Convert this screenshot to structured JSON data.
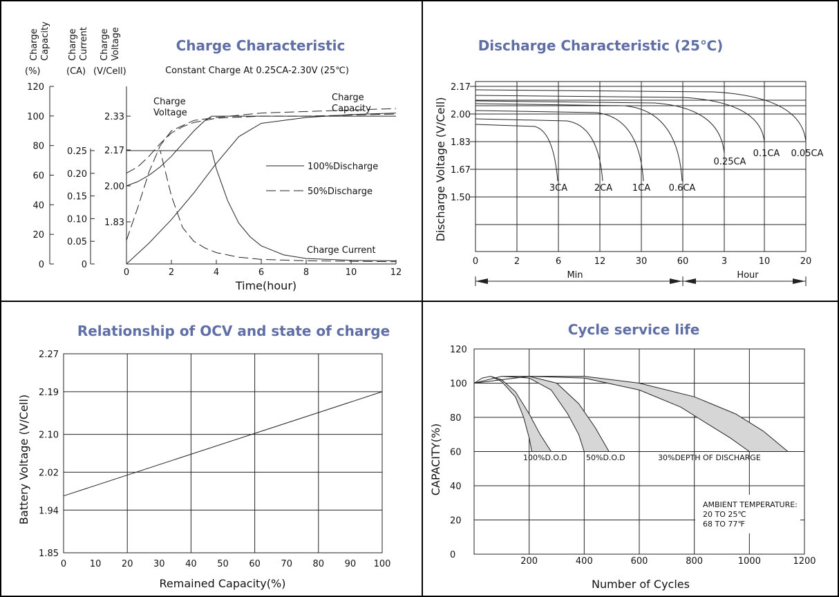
{
  "charts": [
    {
      "type": "line",
      "title": "Charge Characteristic",
      "subtitle": "Constant Charge At 0.25CA-2.30V  (25℃)",
      "xlabel": "Time(hour)",
      "y_axes": [
        {
          "label_lines": [
            "Charge",
            "Capacity"
          ],
          "unit": "(%)",
          "ticks": [
            "120",
            "100",
            "80",
            "60",
            "40",
            "20",
            "0"
          ]
        },
        {
          "label_lines": [
            "Charge",
            "Current"
          ],
          "unit": "(CA)",
          "ticks": [
            "0.25",
            "0.20",
            "0.15",
            "0.10",
            "0.05",
            "0"
          ]
        },
        {
          "label_lines": [
            "Charge",
            "Voltage"
          ],
          "unit": "(V/Cell)",
          "ticks": [
            "2.33",
            "2.17",
            "2.00",
            "1.83"
          ]
        }
      ],
      "x_ticks": [
        "0",
        "2",
        "4",
        "6",
        "8",
        "10",
        "12"
      ],
      "xlim": [
        0,
        12
      ],
      "legend": [
        {
          "label": "100%Discharge",
          "style": "solid"
        },
        {
          "label": "50%Discharge",
          "style": "dashed"
        }
      ],
      "annotations": [
        {
          "text_lines": [
            "Charge",
            "Voltage"
          ]
        },
        {
          "text_lines": [
            "Charge",
            "Capacity"
          ]
        },
        {
          "text_lines": [
            "Charge Current"
          ]
        }
      ],
      "series": [
        {
          "name": "100%Discharge",
          "quantity": "voltage",
          "style": "solid",
          "x": [
            0,
            0.5,
            1,
            1.5,
            2,
            2.5,
            3,
            3.5,
            3.8,
            12
          ],
          "y": [
            2.0,
            2.02,
            2.05,
            2.09,
            2.14,
            2.2,
            2.26,
            2.31,
            2.33,
            2.33
          ]
        },
        {
          "name": "50%Discharge",
          "quantity": "voltage",
          "style": "dashed",
          "x": [
            0,
            0.5,
            1,
            1.5,
            2,
            2.5,
            3,
            3.5,
            4,
            6,
            8,
            12
          ],
          "y": [
            2.06,
            2.09,
            2.14,
            2.2,
            2.25,
            2.28,
            2.3,
            2.31,
            2.32,
            2.33,
            2.33,
            2.34
          ]
        },
        {
          "name": "100%Discharge",
          "quantity": "current",
          "style": "solid",
          "x": [
            0,
            3.8,
            4,
            4.5,
            5,
            5.5,
            6,
            7,
            8,
            10,
            12
          ],
          "y": [
            0.25,
            0.25,
            0.21,
            0.14,
            0.09,
            0.06,
            0.04,
            0.02,
            0.012,
            0.008,
            0.007
          ]
        },
        {
          "name": "50%Discharge",
          "quantity": "current",
          "style": "dashed",
          "x": [
            0,
            1.5,
            2,
            2.5,
            3,
            3.5,
            4,
            5,
            6,
            8,
            10,
            12
          ],
          "y": [
            0.25,
            0.25,
            0.15,
            0.08,
            0.05,
            0.035,
            0.025,
            0.015,
            0.01,
            0.007,
            0.006,
            0.005
          ]
        },
        {
          "name": "100%Discharge",
          "quantity": "capacity",
          "style": "solid",
          "x": [
            0,
            1,
            2,
            3,
            4,
            5,
            6,
            8,
            10,
            12
          ],
          "y": [
            0,
            14,
            30,
            48,
            68,
            86,
            95,
            99,
            101,
            102
          ]
        },
        {
          "name": "50%Discharge",
          "quantity": "capacity",
          "style": "dashed",
          "x": [
            0,
            0.5,
            1,
            1.5,
            2,
            3,
            4,
            6,
            8,
            10,
            12
          ],
          "y": [
            16,
            38,
            62,
            80,
            90,
            97,
            99,
            102,
            103,
            104,
            105
          ]
        }
      ]
    },
    {
      "type": "line",
      "title": "Discharge Characteristic  (25℃)",
      "ylabel": "Discharge Voltage (V/Cell)",
      "y_ticks": [
        "2.17",
        "2.00",
        "1.83",
        "1.67",
        "1.50"
      ],
      "x_ticks": [
        "0",
        "2",
        "6",
        "12",
        "30",
        "60",
        "3",
        "10",
        "20"
      ],
      "x_groups": [
        {
          "label": "Min"
        },
        {
          "label": "Hour"
        }
      ],
      "series": [
        {
          "name": "3CA"
        },
        {
          "name": "2CA"
        },
        {
          "name": "1CA"
        },
        {
          "name": "0.6CA"
        },
        {
          "name": "0.25CA"
        },
        {
          "name": "0.1CA"
        },
        {
          "name": "0.05CA"
        }
      ]
    },
    {
      "type": "line",
      "title": "Relationship of OCV and state of charge",
      "xlabel": "Remained Capacity(%)",
      "ylabel": "Battery Voltage (V/Cell)",
      "x_ticks": [
        "0",
        "10",
        "20",
        "30",
        "40",
        "50",
        "60",
        "70",
        "80",
        "90",
        "100"
      ],
      "y_ticks": [
        "2.27",
        "2.19",
        "2.10",
        "2.02",
        "1.94",
        "1.85"
      ],
      "xlim": [
        0,
        100
      ],
      "ylim": [
        1.85,
        2.27
      ],
      "series": [
        {
          "x": [
            0,
            100
          ],
          "y": [
            1.97,
            2.19
          ]
        }
      ]
    },
    {
      "type": "area",
      "title": "Cycle service life",
      "xlabel": "Number of Cycles",
      "ylabel": "CAPACITY(%)",
      "x_ticks": [
        "200",
        "400",
        "600",
        "800",
        "1000",
        "1200"
      ],
      "y_ticks": [
        "120",
        "100",
        "80",
        "60",
        "40",
        "20",
        "0"
      ],
      "xlim": [
        0,
        1200
      ],
      "ylim": [
        0,
        120
      ],
      "bands": [
        {
          "name": "100%D.O.D",
          "upper": {
            "x": [
              0,
              30,
              60,
              100,
              150,
              200,
              240,
              280
            ],
            "y": [
              100,
              103,
              104,
              102,
              95,
              82,
              70,
              60
            ]
          },
          "lower": {
            "x": [
              0,
              30,
              60,
              100,
              150,
              180,
              200,
              210
            ],
            "y": [
              100,
              103,
              104,
              101,
              92,
              80,
              68,
              60
            ]
          }
        },
        {
          "name": "50%D.O.D",
          "upper": {
            "x": [
              0,
              100,
              200,
              300,
              380,
              440,
              490
            ],
            "y": [
              100,
              104,
              104,
              100,
              88,
              74,
              60
            ]
          },
          "lower": {
            "x": [
              0,
              100,
              200,
              280,
              340,
              380,
              400
            ],
            "y": [
              100,
              104,
              103,
              96,
              82,
              70,
              60
            ]
          }
        },
        {
          "name": "30%DEPTH OF DISCHARGE",
          "upper": {
            "x": [
              0,
              200,
              400,
              600,
              800,
              950,
              1050,
              1140
            ],
            "y": [
              100,
              104,
              104,
              100,
              92,
              82,
              72,
              60
            ]
          },
          "lower": {
            "x": [
              0,
              200,
              400,
              600,
              750,
              850,
              930,
              1000
            ],
            "y": [
              100,
              104,
              103,
              96,
              86,
              76,
              68,
              60
            ]
          }
        }
      ],
      "note_lines": [
        "AMBIENT TEMPERATURE:",
        "20 TO 25℃",
        "68 TO 77℉"
      ]
    }
  ]
}
